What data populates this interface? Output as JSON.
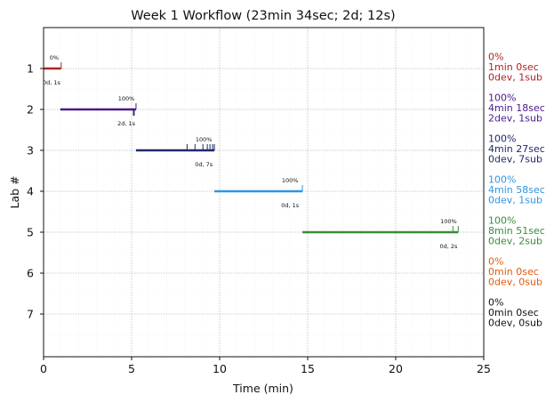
{
  "chart_data": {
    "type": "timeline",
    "title": "Week 1 Workflow (23min 34sec; 2d; 12s)",
    "xlabel": "Time (min)",
    "ylabel": "Lab #",
    "xlim": [
      0,
      25
    ],
    "xticks": [
      0,
      5,
      10,
      15,
      20,
      25
    ],
    "yticks": [
      1,
      2,
      3,
      4,
      5,
      6,
      7
    ],
    "grid": true,
    "labs": [
      {
        "lab": 1,
        "color": "#b22222",
        "start": 0.0,
        "end": 1.0,
        "pct_label": "0%",
        "pct_x": 0.6,
        "sub_label": "0d, 1s",
        "sub_x": 0.45,
        "submits": [
          1.0
        ],
        "side": [
          "0%",
          "1min 0sec",
          "0dev, 1sub"
        ]
      },
      {
        "lab": 2,
        "color": "#4b1a8c",
        "start": 0.95,
        "end": 5.25,
        "pct_label": "100%",
        "pct_x": 4.7,
        "sub_label": "2d, 1s",
        "sub_x": 4.7,
        "submits": [
          5.25
        ],
        "devs": [
          5.1,
          5.15
        ],
        "side": [
          "100%",
          "4min 18sec",
          "2dev, 1sub"
        ]
      },
      {
        "lab": 3,
        "color": "#1f2a6b",
        "start": 5.25,
        "end": 9.7,
        "pct_label": "100%",
        "pct_x": 9.1,
        "sub_label": "0d, 7s",
        "sub_x": 9.1,
        "submits": [
          8.15,
          8.6,
          9.05,
          9.3,
          9.45,
          9.6,
          9.7
        ],
        "side": [
          "100%",
          "4min 27sec",
          "0dev, 7sub"
        ]
      },
      {
        "lab": 4,
        "color": "#2f96e0",
        "start": 9.7,
        "end": 14.7,
        "pct_label": "100%",
        "pct_x": 14.0,
        "sub_label": "0d, 1s",
        "sub_x": 14.0,
        "submits": [
          14.7
        ],
        "side": [
          "100%",
          "4min 58sec",
          "0dev, 1sub"
        ]
      },
      {
        "lab": 5,
        "color": "#3a8c3a",
        "start": 14.7,
        "end": 23.55,
        "pct_label": "100%",
        "pct_x": 23.0,
        "sub_label": "0d, 2s",
        "sub_x": 23.0,
        "submits": [
          23.25,
          23.55
        ],
        "side": [
          "100%",
          "8min 51sec",
          "0dev, 2sub"
        ]
      },
      {
        "lab": 6,
        "color": "#e05a10",
        "side": [
          "0%",
          "0min 0sec",
          "0dev, 0sub"
        ]
      },
      {
        "lab": 7,
        "color": "#111111",
        "side": [
          "0%",
          "0min 0sec",
          "0dev, 0sub"
        ]
      }
    ]
  }
}
